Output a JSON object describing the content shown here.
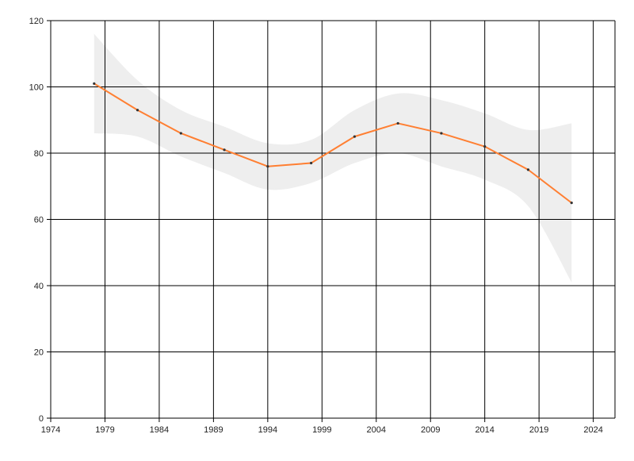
{
  "chart_data": {
    "type": "line",
    "title": "",
    "xlabel": "",
    "ylabel": "",
    "xlim": [
      1974,
      2026
    ],
    "ylim": [
      0,
      120
    ],
    "x_ticks": [
      "1974",
      "1979",
      "1984",
      "1989",
      "1994",
      "1999",
      "2004",
      "2009",
      "2014",
      "2019",
      "2024"
    ],
    "y_ticks": [
      "0",
      "20",
      "40",
      "60",
      "80",
      "100",
      "120"
    ],
    "grid": true,
    "legend": "none",
    "series": [
      {
        "color": "#ff7f32",
        "points": [
          {
            "x": 1978,
            "y": 101
          },
          {
            "x": 1982,
            "y": 93
          },
          {
            "x": 1986,
            "y": 86
          },
          {
            "x": 1990,
            "y": 81
          },
          {
            "x": 1994,
            "y": 76
          },
          {
            "x": 1998,
            "y": 77
          },
          {
            "x": 2002,
            "y": 85
          },
          {
            "x": 2006,
            "y": 89
          },
          {
            "x": 2010,
            "y": 86
          },
          {
            "x": 2014,
            "y": 82
          },
          {
            "x": 2018,
            "y": 75
          },
          {
            "x": 2022,
            "y": 65
          }
        ]
      }
    ],
    "confidence_band": {
      "color": "#eeeeee",
      "points": [
        {
          "x": 1978,
          "low": 86,
          "high": 116
        },
        {
          "x": 1982,
          "low": 85,
          "high": 102
        },
        {
          "x": 1986,
          "low": 79,
          "high": 93
        },
        {
          "x": 1990,
          "low": 74,
          "high": 88
        },
        {
          "x": 1994,
          "low": 69,
          "high": 83
        },
        {
          "x": 1998,
          "low": 71,
          "high": 84
        },
        {
          "x": 2002,
          "low": 77,
          "high": 93
        },
        {
          "x": 2006,
          "low": 80,
          "high": 98
        },
        {
          "x": 2010,
          "low": 76,
          "high": 96
        },
        {
          "x": 2014,
          "low": 72,
          "high": 92
        },
        {
          "x": 2018,
          "low": 64,
          "high": 87
        },
        {
          "x": 2022,
          "low": 41,
          "high": 89
        }
      ]
    }
  }
}
